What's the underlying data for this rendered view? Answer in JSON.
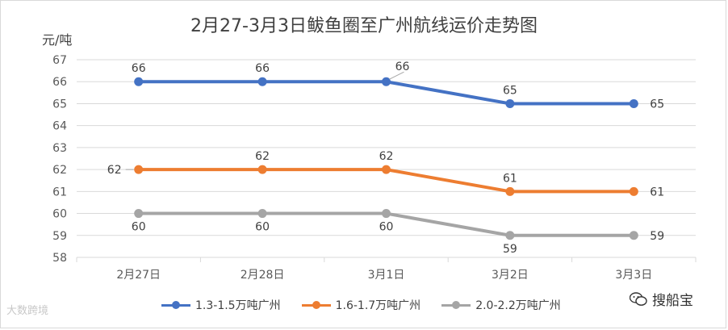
{
  "chart_data": {
    "type": "line",
    "title": "2月27-3月3日鲅鱼圈至广州航线运价走势图",
    "ylabel": "元/吨",
    "xlabel": "",
    "categories": [
      "2月27日",
      "2月28日",
      "3月1日",
      "3月2日",
      "3月3日"
    ],
    "ylim": [
      58,
      67
    ],
    "yticks": [
      58,
      59,
      60,
      61,
      62,
      63,
      64,
      65,
      66,
      67
    ],
    "grid": true,
    "legend_position": "bottom",
    "series": [
      {
        "name": "1.3-1.5万吨广州",
        "values": [
          66,
          66,
          66,
          65,
          65
        ],
        "color": "#4472c4"
      },
      {
        "name": "1.6-1.7万吨广州",
        "values": [
          62,
          62,
          62,
          61,
          61
        ],
        "color": "#ed7d31"
      },
      {
        "name": "2.0-2.2万吨广州",
        "values": [
          60,
          60,
          60,
          59,
          59
        ],
        "color": "#a5a5a5"
      }
    ]
  },
  "watermarks": {
    "left": "大数跨境",
    "right": "搜船宝"
  }
}
